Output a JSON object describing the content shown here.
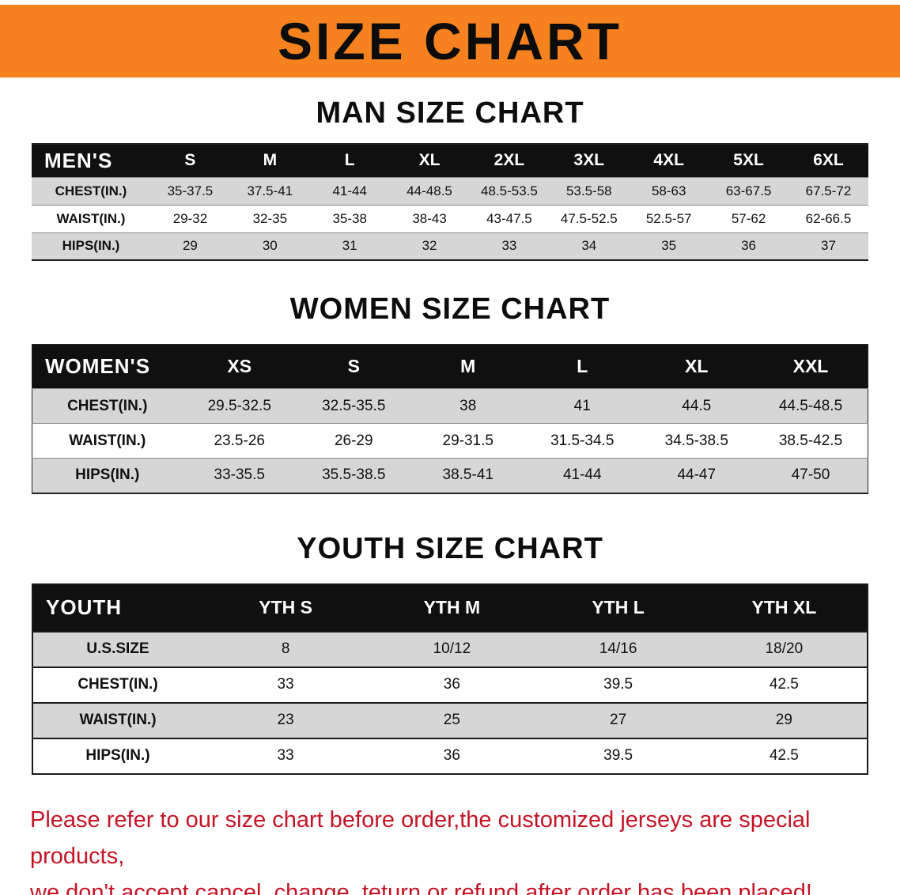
{
  "banner": {
    "title": "SIZE CHART",
    "bg_color": "#f5821e",
    "text_color": "#0c0c0c"
  },
  "tables": [
    {
      "id": "men",
      "title": "MAN SIZE CHART",
      "header_label": "MEN'S",
      "columns": [
        "S",
        "M",
        "L",
        "XL",
        "2XL",
        "3XL",
        "4XL",
        "5XL",
        "6XL"
      ],
      "rows": [
        {
          "label": "CHEST(IN.)",
          "values": [
            "35-37.5",
            "37.5-41",
            "41-44",
            "44-48.5",
            "48.5-53.5",
            "53.5-58",
            "58-63",
            "63-67.5",
            "67.5-72"
          ]
        },
        {
          "label": "WAIST(IN.)",
          "values": [
            "29-32",
            "32-35",
            "35-38",
            "38-43",
            "43-47.5",
            "47.5-52.5",
            "52.5-57",
            "57-62",
            "62-66.5"
          ]
        },
        {
          "label": "HIPS(IN.)",
          "values": [
            "29",
            "30",
            "31",
            "32",
            "33",
            "34",
            "35",
            "36",
            "37"
          ]
        }
      ]
    },
    {
      "id": "women",
      "title": "WOMEN SIZE CHART",
      "header_label": "WOMEN'S",
      "columns": [
        "XS",
        "S",
        "M",
        "L",
        "XL",
        "XXL"
      ],
      "rows": [
        {
          "label": "CHEST(IN.)",
          "values": [
            "29.5-32.5",
            "32.5-35.5",
            "38",
            "41",
            "44.5",
            "44.5-48.5"
          ]
        },
        {
          "label": "WAIST(IN.)",
          "values": [
            "23.5-26",
            "26-29",
            "29-31.5",
            "31.5-34.5",
            "34.5-38.5",
            "38.5-42.5"
          ]
        },
        {
          "label": "HIPS(IN.)",
          "values": [
            "33-35.5",
            "35.5-38.5",
            "38.5-41",
            "41-44",
            "44-47",
            "47-50"
          ]
        }
      ]
    },
    {
      "id": "youth",
      "title": "YOUTH SIZE CHART",
      "header_label": "YOUTH",
      "columns": [
        "YTH S",
        "YTH M",
        "YTH L",
        "YTH XL"
      ],
      "rows": [
        {
          "label": "U.S.SIZE",
          "values": [
            "8",
            "10/12",
            "14/16",
            "18/20"
          ]
        },
        {
          "label": "CHEST(IN.)",
          "values": [
            "33",
            "36",
            "39.5",
            "42.5"
          ]
        },
        {
          "label": "WAIST(IN.)",
          "values": [
            "23",
            "25",
            "27",
            "29"
          ]
        },
        {
          "label": "HIPS(IN.)",
          "values": [
            "33",
            "36",
            "39.5",
            "42.5"
          ]
        }
      ]
    }
  ],
  "disclaimer": {
    "color": "#c41425",
    "lines": [
      "Please refer to our size chart before order,the customized jerseys are special products,",
      "we don't accept cancel, change, teturn or refund after order has been placed!"
    ]
  }
}
